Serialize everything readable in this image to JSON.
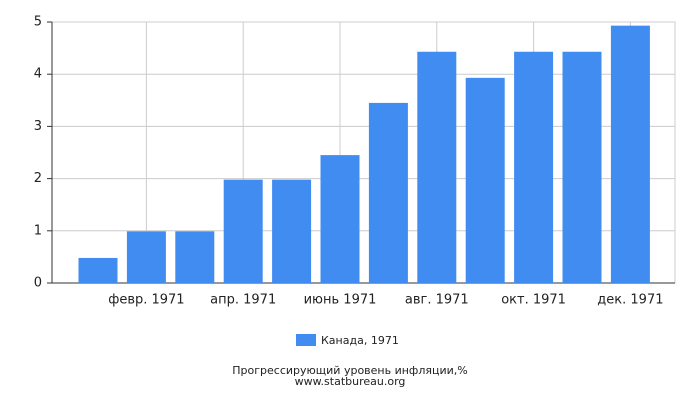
{
  "chart_data": {
    "type": "bar",
    "title": "Прогрессирующий уровень инфляции,%",
    "source": "www.statbureau.org",
    "categories": [
      null,
      "февр. 1971",
      null,
      "апр. 1971",
      null,
      "июнь 1971",
      null,
      "авг. 1971",
      null,
      "окт. 1971",
      null,
      "дек. 1971"
    ],
    "series": [
      {
        "name": "Канада, 1971",
        "color": "#418cf0",
        "values": [
          0.48,
          0.99,
          0.99,
          1.98,
          1.98,
          2.45,
          3.45,
          4.43,
          3.93,
          4.43,
          4.43,
          4.93
        ]
      }
    ],
    "ylim": [
      0,
      5
    ],
    "yticks": [
      0,
      1,
      2,
      3,
      4,
      5
    ],
    "grid": true
  }
}
